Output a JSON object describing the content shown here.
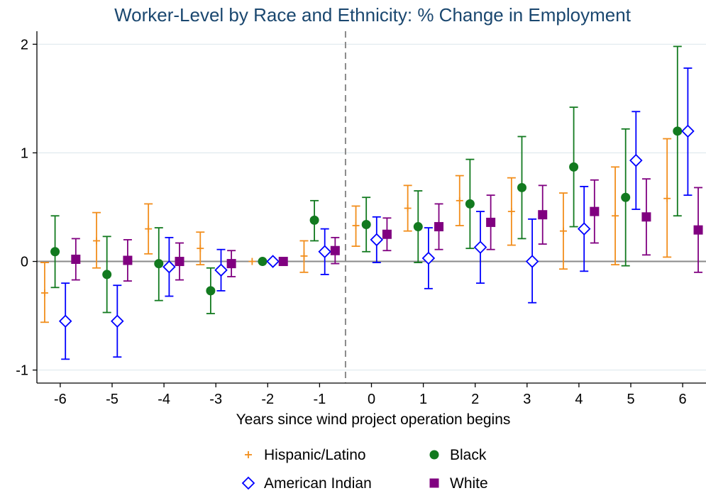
{
  "chart_data": {
    "type": "scatter",
    "title": "Worker-Level by Race and Ethnicity: % Change in Employment",
    "xlabel": "Years since wind project operation begins",
    "ylabel": "",
    "x": [
      -6,
      -5,
      -4,
      -3,
      -2,
      -1,
      0,
      1,
      2,
      3,
      4,
      5,
      6
    ],
    "x_tick_labels": [
      "-6",
      "-5",
      "-4",
      "-3",
      "-2",
      "-1",
      "0",
      "1",
      "2",
      "3",
      "4",
      "5",
      "6"
    ],
    "y_ticks": [
      -1,
      0,
      1,
      2
    ],
    "y_tick_labels": [
      "-1",
      "0",
      "1",
      "2"
    ],
    "xlim": [
      -6.45,
      6.45
    ],
    "ylim": [
      -1.12,
      2.12
    ],
    "reference_line_x": -0.5,
    "reference_line_y": 0,
    "grid": "horizontal",
    "legend_position": "bottom",
    "series": [
      {
        "name": "Hispanic/Latino",
        "marker": "plus",
        "color": "#f28e1c",
        "offset": -0.3,
        "values": [
          -0.29,
          0.19,
          0.3,
          0.12,
          0.0,
          0.05,
          0.33,
          0.49,
          0.56,
          0.46,
          0.28,
          0.42,
          0.58
        ],
        "lower": [
          -0.56,
          -0.06,
          0.07,
          -0.03,
          0.0,
          -0.1,
          0.14,
          0.28,
          0.33,
          0.15,
          -0.07,
          -0.03,
          0.04
        ],
        "upper": [
          -0.01,
          0.45,
          0.53,
          0.27,
          0.0,
          0.19,
          0.51,
          0.7,
          0.79,
          0.77,
          0.63,
          0.87,
          1.13
        ]
      },
      {
        "name": "Black",
        "marker": "circle",
        "color": "#127a1f",
        "offset": -0.1,
        "values": [
          0.09,
          -0.12,
          -0.02,
          -0.27,
          0.0,
          0.38,
          0.34,
          0.32,
          0.53,
          0.68,
          0.87,
          0.59,
          1.2
        ],
        "lower": [
          -0.24,
          -0.47,
          -0.36,
          -0.48,
          0.0,
          0.19,
          0.09,
          -0.01,
          0.12,
          0.21,
          0.32,
          -0.04,
          0.42
        ],
        "upper": [
          0.42,
          0.23,
          0.31,
          -0.06,
          0.0,
          0.56,
          0.59,
          0.65,
          0.94,
          1.15,
          1.42,
          1.22,
          1.98
        ]
      },
      {
        "name": "American Indian",
        "marker": "diamond",
        "color": "#0000ff",
        "offset": 0.1,
        "values": [
          -0.55,
          -0.55,
          -0.05,
          -0.08,
          0.0,
          0.09,
          0.2,
          0.03,
          0.13,
          0.0,
          0.3,
          0.93,
          1.2
        ],
        "lower": [
          -0.9,
          -0.88,
          -0.32,
          -0.27,
          0.0,
          -0.12,
          -0.01,
          -0.25,
          -0.2,
          -0.38,
          -0.09,
          0.48,
          0.61
        ],
        "upper": [
          -0.2,
          -0.22,
          0.22,
          0.11,
          0.0,
          0.3,
          0.41,
          0.31,
          0.46,
          0.39,
          0.69,
          1.38,
          1.78
        ]
      },
      {
        "name": "White",
        "marker": "square",
        "color": "#800080",
        "offset": 0.3,
        "values": [
          0.02,
          0.01,
          0.0,
          -0.02,
          0.0,
          0.1,
          0.25,
          0.32,
          0.36,
          0.43,
          0.46,
          0.41,
          0.29
        ],
        "lower": [
          -0.17,
          -0.18,
          -0.17,
          -0.14,
          0.0,
          -0.02,
          0.1,
          0.11,
          0.11,
          0.16,
          0.17,
          0.06,
          -0.1
        ],
        "upper": [
          0.21,
          0.2,
          0.17,
          0.1,
          0.0,
          0.22,
          0.4,
          0.53,
          0.61,
          0.7,
          0.75,
          0.76,
          0.68
        ]
      }
    ]
  }
}
